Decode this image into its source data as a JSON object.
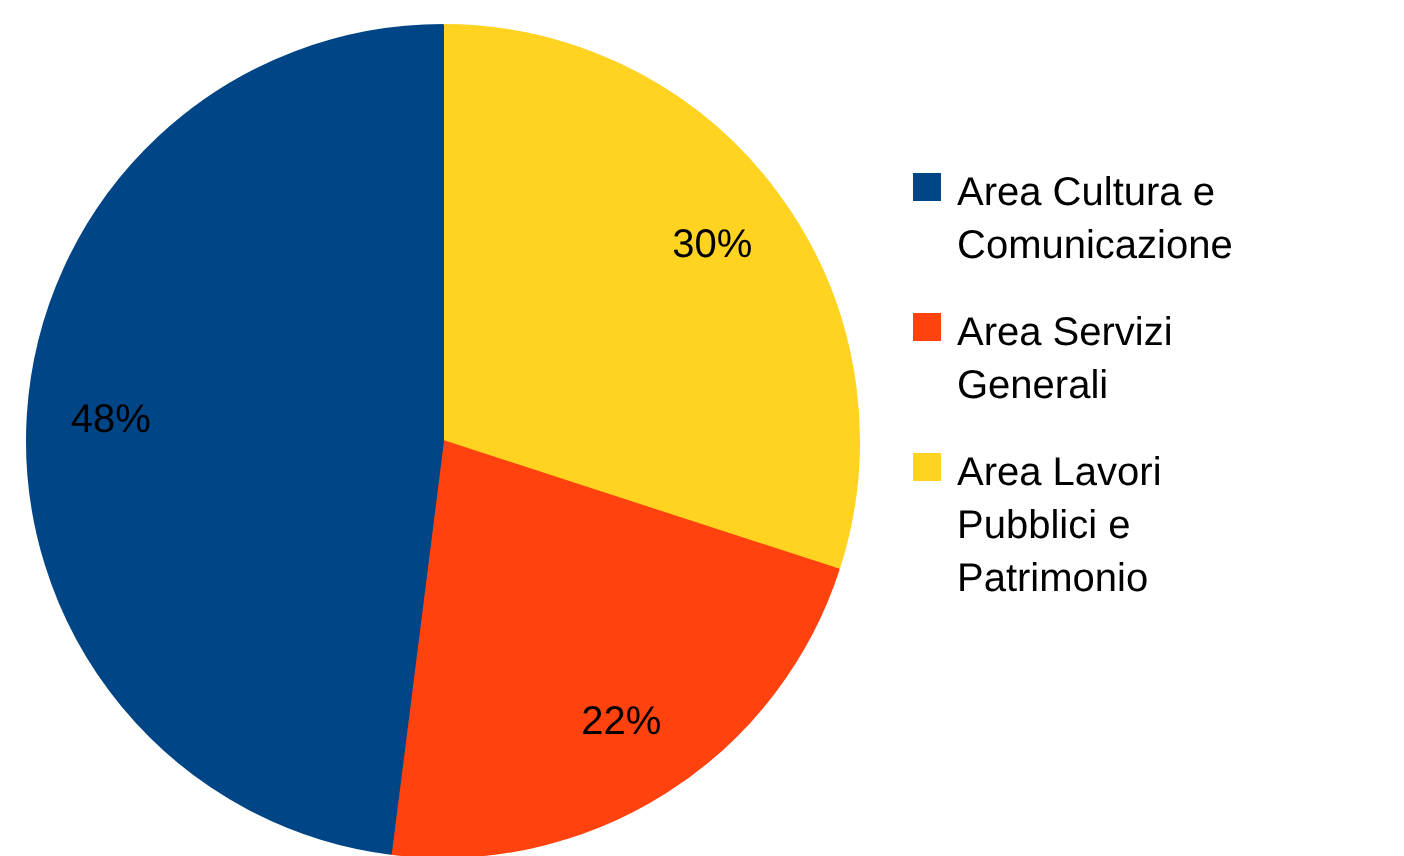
{
  "chart_data": {
    "type": "pie",
    "categories": [
      "Area Cultura e Comunicazione",
      "Area Servizi Generali",
      "Area Lavori Pubblici e Patrimonio"
    ],
    "values": [
      48,
      22,
      30
    ],
    "colors": [
      "#004586",
      "#ff420e",
      "#ffd320"
    ],
    "value_labels": [
      "48%",
      "22%",
      "30%"
    ],
    "legend": "right"
  }
}
